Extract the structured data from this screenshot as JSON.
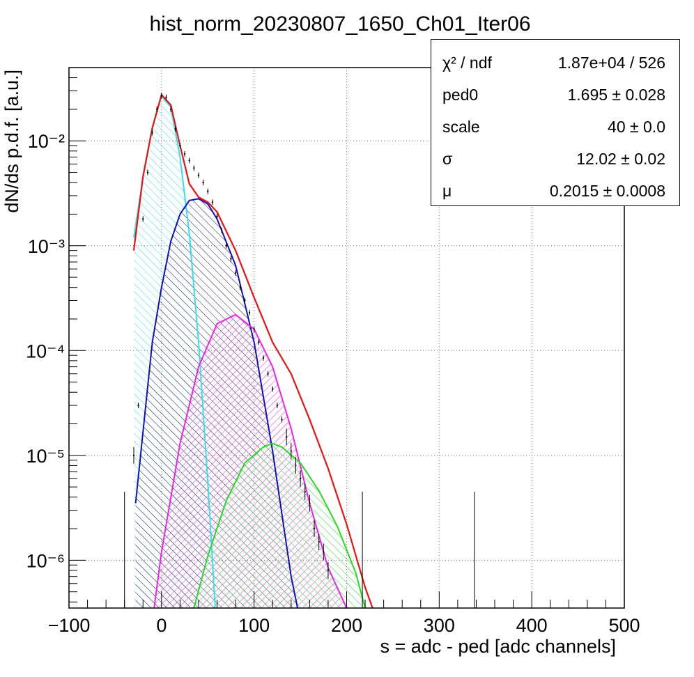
{
  "chart_data": {
    "type": "histogram",
    "title": "hist_norm_20230807_1650_Ch01_Iter06",
    "xlabel": "s = adc - ped [adc channels]",
    "ylabel": "dN/ds p.d.f. [a.u.]",
    "xlim": [
      -100,
      500
    ],
    "ylim": [
      3.5e-07,
      0.05
    ],
    "yscale": "log",
    "grid": true,
    "x_ticks": [
      "−100",
      "0",
      "100",
      "200",
      "300",
      "400",
      "500"
    ],
    "x_tick_values": [
      -100,
      0,
      100,
      200,
      300,
      400,
      500
    ],
    "y_ticks": [
      "10⁻²",
      "10⁻³",
      "10⁻⁴",
      "10⁻⁵",
      "10⁻⁶"
    ],
    "y_tick_values": [
      0.01,
      0.001,
      0.0001,
      1e-05,
      1e-06
    ],
    "legend_position": "top-right",
    "stats": [
      {
        "name": "χ² / ndf",
        "value": "1.87e+04 / 526"
      },
      {
        "name": "ped0",
        "value": "1.695 ± 0.028"
      },
      {
        "name": "scale",
        "value": "40 ± 0.0"
      },
      {
        "name": "σ",
        "value": "12.02 ± 0.02"
      },
      {
        "name": "μ",
        "value": "0.2015 ± 0.0008"
      }
    ],
    "components": [
      {
        "color": "#33e0f0",
        "x": [
          -30,
          -20,
          -10,
          0,
          10,
          20,
          30,
          40,
          50,
          58
        ],
        "y": [
          0.0012,
          0.0045,
          0.013,
          0.027,
          0.021,
          0.007,
          0.0013,
          0.00012,
          5.5e-06,
          3.5e-07
        ]
      },
      {
        "color": "#1010c0",
        "x": [
          -28,
          -10,
          0,
          10,
          20,
          30,
          40,
          50,
          60,
          80,
          100,
          120,
          140,
          147
        ],
        "y": [
          3.5e-06,
          0.00012,
          0.0004,
          0.0011,
          0.002,
          0.0027,
          0.0028,
          0.0025,
          0.0018,
          0.00065,
          0.00012,
          1.1e-05,
          7e-07,
          3.5e-07
        ]
      },
      {
        "color": "#ee22ee",
        "x": [
          -8,
          0,
          20,
          40,
          60,
          80,
          100,
          120,
          140,
          160,
          180,
          200
        ],
        "y": [
          3.5e-07,
          1.2e-06,
          1.3e-05,
          7e-05,
          0.00018,
          0.00022,
          0.00016,
          7e-05,
          1.8e-05,
          3.5e-06,
          8.5e-07,
          3.5e-07
        ]
      },
      {
        "color": "#22dd22",
        "x": [
          35,
          50,
          70,
          90,
          110,
          120,
          130,
          150,
          170,
          190,
          210,
          220
        ],
        "y": [
          3.5e-07,
          1.1e-06,
          3.7e-06,
          8.5e-06,
          1.2e-05,
          1.3e-05,
          1.2e-05,
          8.5e-06,
          4.6e-06,
          2.1e-06,
          7.5e-07,
          3.5e-07
        ]
      }
    ],
    "total_fit": {
      "color": "#ee1111",
      "x": [
        -30,
        -20,
        -10,
        0,
        10,
        20,
        30,
        40,
        50,
        60,
        80,
        100,
        120,
        140,
        160,
        180,
        200,
        220,
        228
      ],
      "y": [
        0.0009,
        0.0046,
        0.0133,
        0.0275,
        0.022,
        0.009,
        0.0039,
        0.0029,
        0.0026,
        0.0021,
        0.0009,
        0.00032,
        0.00012,
        6e-05,
        2.2e-05,
        7.5e-06,
        2.2e-06,
        5.5e-07,
        3.5e-07
      ]
    },
    "data_points": {
      "color": "#000000",
      "x": [
        -30,
        -25,
        -20,
        -15,
        -10,
        -5,
        0,
        5,
        10,
        15,
        20,
        25,
        30,
        35,
        40,
        45,
        50,
        55,
        60,
        65,
        70,
        75,
        80,
        85,
        90,
        95,
        100,
        105,
        110,
        115,
        120,
        125,
        130,
        135,
        140,
        145,
        150,
        155,
        160,
        165,
        170,
        175,
        180
      ],
      "y": [
        1e-05,
        3e-05,
        0.0018,
        0.005,
        0.012,
        0.02,
        0.027,
        0.026,
        0.02,
        0.013,
        0.009,
        0.0075,
        0.0065,
        0.0055,
        0.0047,
        0.004,
        0.0033,
        0.0026,
        0.0019,
        0.0014,
        0.001,
        0.00075,
        0.00055,
        0.0004,
        0.0003,
        0.00023,
        0.00016,
        0.00012,
        8.5e-05,
        6e-05,
        4.3e-05,
        3e-05,
        2.2e-05,
        1.5e-05,
        1.1e-05,
        8e-06,
        6e-06,
        4.5e-06,
        3.5e-06,
        2e-06,
        1.5e-06,
        1.2e-06,
        8e-07
      ],
      "isolated": [
        {
          "x": -40,
          "y": 4.5e-06
        },
        {
          "x": 217,
          "y": 4.5e-06
        },
        {
          "x": 338,
          "y": 4.5e-06
        }
      ]
    }
  }
}
